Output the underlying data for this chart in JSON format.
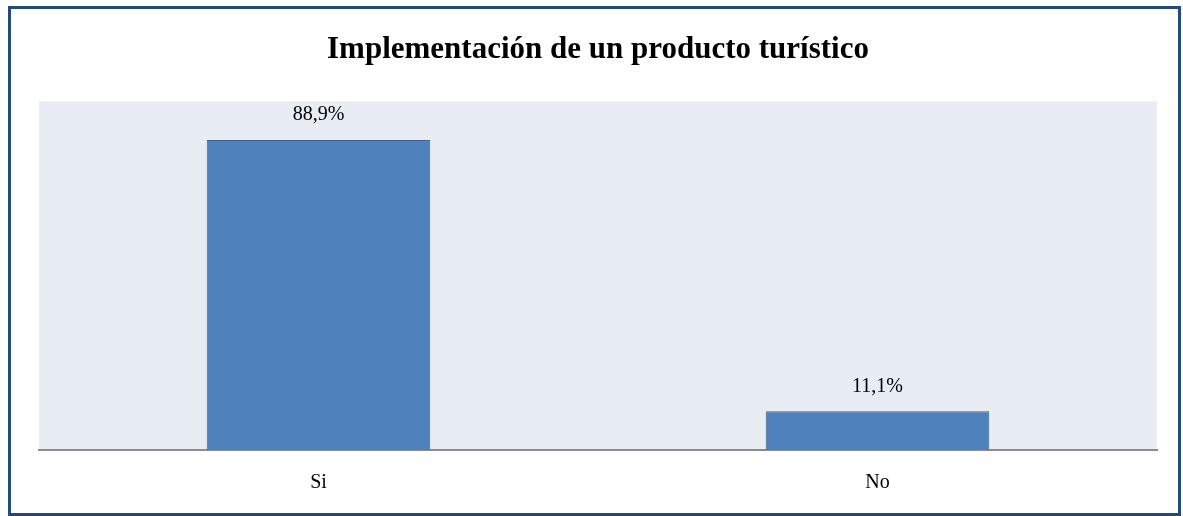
{
  "chart_data": {
    "type": "bar",
    "title": "Implementación de un producto turístico",
    "categories": [
      "Si",
      "No"
    ],
    "values": [
      88.9,
      11.1
    ],
    "color": "#4f81bd",
    "value_labels": [
      "88,9%",
      "11,1%"
    ],
    "ylim": [
      0,
      100
    ],
    "tick_labels": "x"
  }
}
